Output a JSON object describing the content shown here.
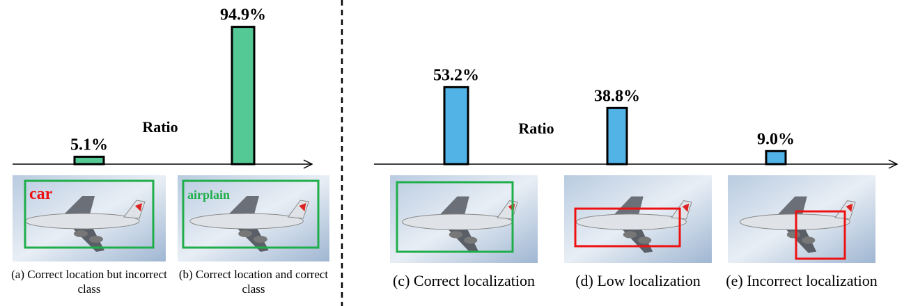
{
  "chart_data": [
    {
      "type": "bar",
      "axis_label": "Ratio",
      "categories": [
        "(a) Correct location but incorrect class",
        "(b) Correct location and correct class"
      ],
      "values": [
        5.1,
        94.9
      ],
      "value_labels": [
        "5.1%",
        "94.9%"
      ],
      "color": "#55c995",
      "box_colors": [
        "#1fae4a",
        "#1fae4a"
      ],
      "box_labels": [
        "car",
        "airplain"
      ],
      "box_label_colors": [
        "#ee1111",
        "#1fae4a"
      ]
    },
    {
      "type": "bar",
      "axis_label": "Ratio",
      "categories": [
        "(c) Correct localization",
        "(d) Low localization",
        "(e) Incorrect localization"
      ],
      "values": [
        53.2,
        38.8,
        9.0
      ],
      "value_labels": [
        "53.2%",
        "38.8%",
        "9.0%"
      ],
      "color": "#52b4e6",
      "box_colors": [
        "#1fae4a",
        "#ee1111",
        "#ee1111"
      ]
    }
  ]
}
